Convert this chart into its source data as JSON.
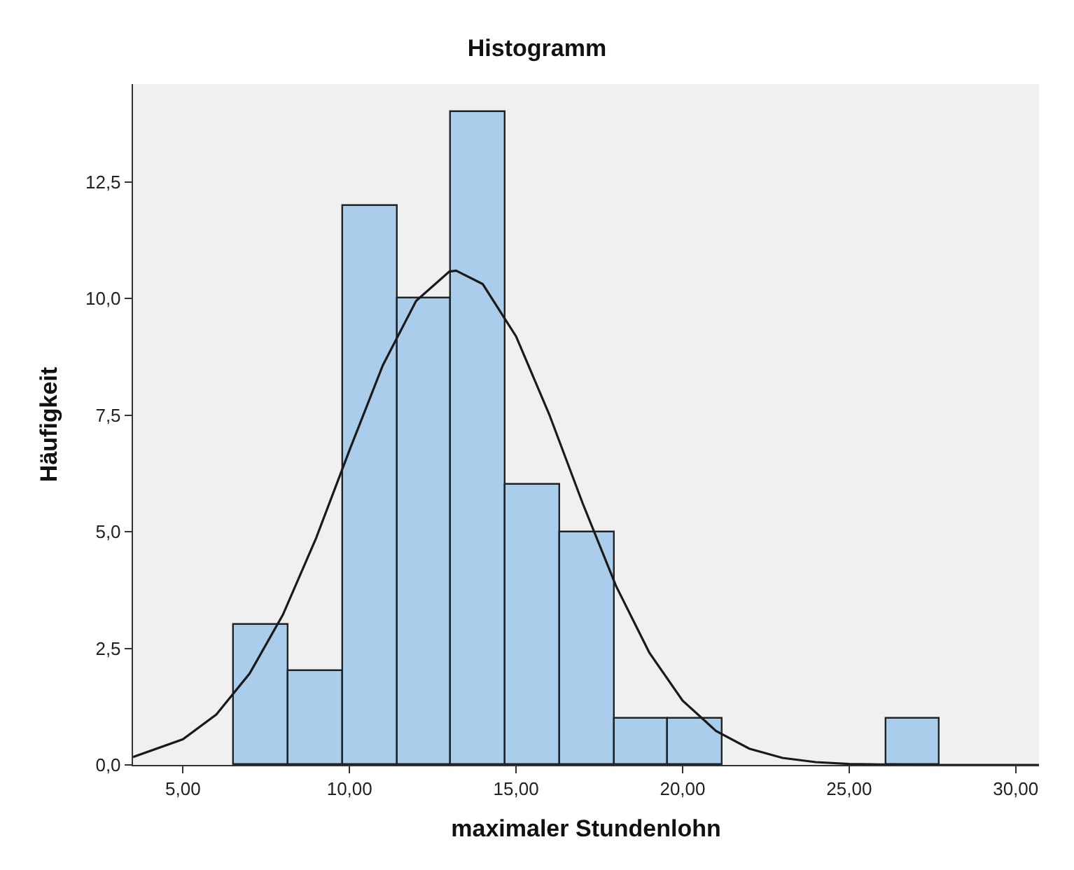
{
  "chart_data": {
    "type": "histogram",
    "title": "Histogramm",
    "xlabel": "maximaler Stundenlohn",
    "ylabel": "Häufigkeit",
    "bins": [
      6.54,
      8.17,
      9.8,
      11.43,
      13.06,
      14.69,
      16.32,
      17.95,
      19.58,
      21.21,
      22.84,
      24.47,
      26.1,
      27.73
    ],
    "values": [
      3,
      2,
      12,
      10,
      14,
      6,
      5,
      1,
      1,
      0,
      0,
      0,
      1
    ],
    "color": "#abcdec",
    "series": [
      {
        "type": "line",
        "color": "#1a1a1a",
        "x": [
          3.5,
          5,
          6,
          7,
          8,
          9,
          10,
          11,
          12,
          13,
          13.2,
          14,
          15,
          16,
          17,
          18,
          19,
          20,
          21,
          22,
          23,
          24,
          25,
          26,
          27,
          28,
          29,
          30,
          30.7
        ],
        "values": [
          0.17,
          0.55,
          1.08,
          1.96,
          3.22,
          4.87,
          6.75,
          8.57,
          9.95,
          10.58,
          10.6,
          10.31,
          9.19,
          7.51,
          5.61,
          3.84,
          2.41,
          1.38,
          0.73,
          0.35,
          0.15,
          0.06,
          0.02,
          0.01,
          0,
          0,
          0,
          0,
          0
        ]
      }
    ],
    "xlim": [
      3.5,
      30.7
    ],
    "ylim": [
      0,
      14.6
    ],
    "xticks": [
      {
        "value": 5,
        "label": "5,00"
      },
      {
        "value": 10,
        "label": "10,00"
      },
      {
        "value": 15,
        "label": "15,00"
      },
      {
        "value": 20,
        "label": "20,00"
      },
      {
        "value": 25,
        "label": "25,00"
      },
      {
        "value": 30,
        "label": "30,00"
      }
    ],
    "yticks": [
      {
        "value": 0,
        "label": "0,0"
      },
      {
        "value": 2.5,
        "label": "2,5"
      },
      {
        "value": 5,
        "label": "5,0"
      },
      {
        "value": 7.5,
        "label": "7,5"
      },
      {
        "value": 10,
        "label": "10,0"
      },
      {
        "value": 12.5,
        "label": "12,5"
      }
    ],
    "grid": false,
    "marker": "none",
    "line_style": "solid"
  }
}
